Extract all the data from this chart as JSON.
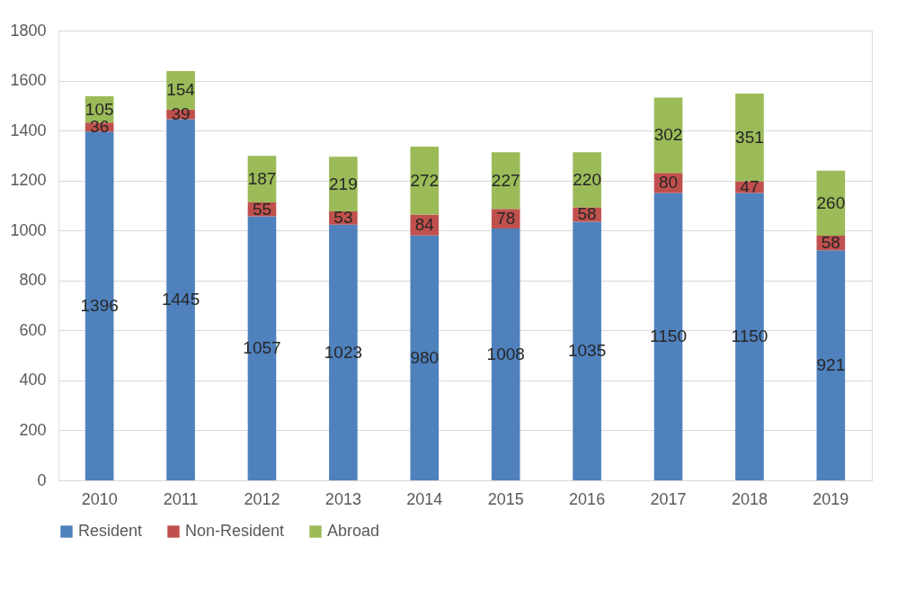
{
  "chart_data": {
    "type": "bar",
    "stacked": true,
    "categories": [
      "2010",
      "2011",
      "2012",
      "2013",
      "2014",
      "2015",
      "2016",
      "2017",
      "2018",
      "2019"
    ],
    "series": [
      {
        "name": "Resident",
        "color": "#4f81bd",
        "values": [
          1396,
          1445,
          1057,
          1023,
          980,
          1008,
          1035,
          1150,
          1150,
          921
        ]
      },
      {
        "name": "Non-Resident",
        "color": "#c0504d",
        "values": [
          36,
          39,
          55,
          53,
          84,
          78,
          58,
          80,
          47,
          58
        ]
      },
      {
        "name": "Abroad",
        "color": "#9bbb59",
        "values": [
          105,
          154,
          187,
          219,
          272,
          227,
          220,
          302,
          351,
          260
        ]
      }
    ],
    "ylim": [
      0,
      1800
    ],
    "yticks": [
      0,
      200,
      400,
      600,
      800,
      1000,
      1200,
      1400,
      1600,
      1800
    ],
    "grid": "y",
    "legend": "bottom",
    "data_labels": true
  }
}
